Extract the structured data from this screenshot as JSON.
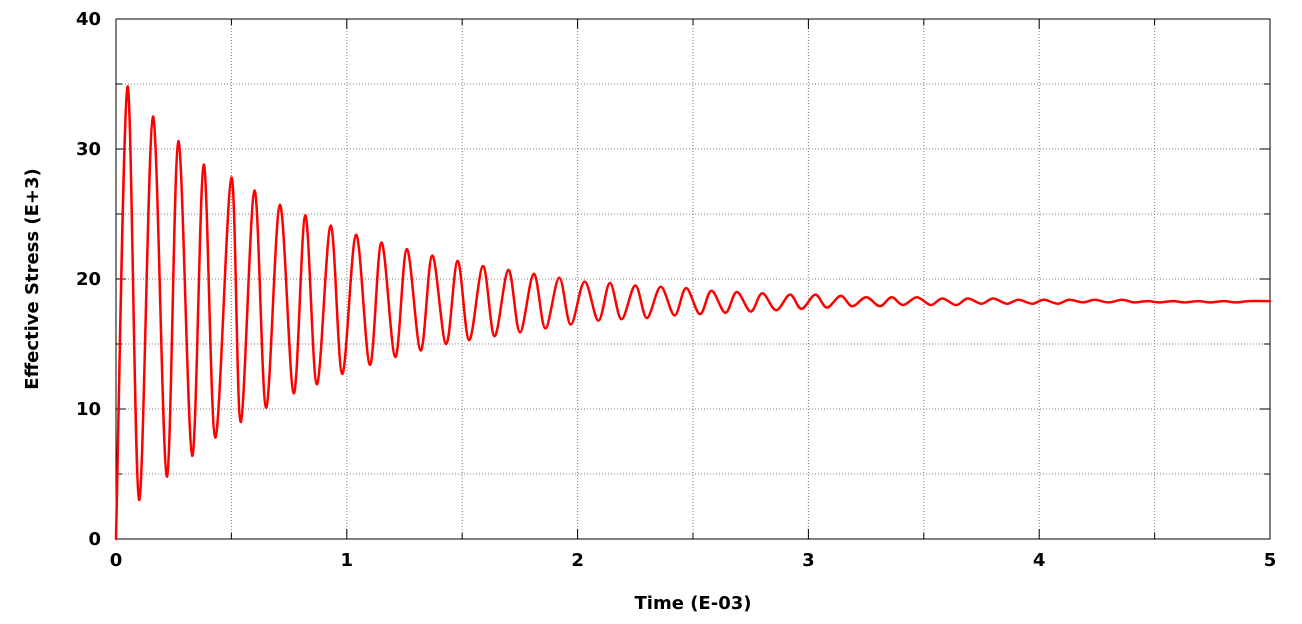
{
  "chart_data": {
    "type": "line",
    "title": "",
    "xlabel": "Time (E-03)",
    "ylabel": "Effective Stress (E+3)",
    "xlim": [
      0,
      5
    ],
    "ylim": [
      0,
      40
    ],
    "x_ticks": [
      0,
      1,
      2,
      3,
      4,
      5
    ],
    "x_tick_labels": [
      "0",
      "1",
      "2",
      "3",
      "4",
      "5"
    ],
    "y_ticks": [
      0,
      10,
      20,
      30,
      40
    ],
    "y_tick_labels": [
      "0",
      "10",
      "20",
      "30",
      "40"
    ],
    "x_minor_ticks": [
      0.5,
      1.5,
      2.5,
      3.5,
      4.5
    ],
    "y_minor_ticks": [
      5,
      15,
      25,
      35
    ],
    "grid": true,
    "legend": "none",
    "series_color": "#ff0000",
    "series": [
      {
        "points": [
          [
            0,
            0
          ],
          [
            0.05,
            34.8
          ],
          [
            0.1,
            3.0
          ],
          [
            0.16,
            32.5
          ],
          [
            0.22,
            4.8
          ],
          [
            0.27,
            30.6
          ],
          [
            0.33,
            6.4
          ],
          [
            0.38,
            28.8
          ],
          [
            0.43,
            7.8
          ],
          [
            0.5,
            27.8
          ],
          [
            0.54,
            9.0
          ],
          [
            0.6,
            26.8
          ],
          [
            0.65,
            10.1
          ],
          [
            0.71,
            25.7
          ],
          [
            0.77,
            11.2
          ],
          [
            0.82,
            24.9
          ],
          [
            0.87,
            11.9
          ],
          [
            0.93,
            24.1
          ],
          [
            0.98,
            12.7
          ],
          [
            1.04,
            23.4
          ],
          [
            1.1,
            13.4
          ],
          [
            1.15,
            22.8
          ],
          [
            1.21,
            14.0
          ],
          [
            1.26,
            22.3
          ],
          [
            1.32,
            14.5
          ],
          [
            1.37,
            21.8
          ],
          [
            1.43,
            15.0
          ],
          [
            1.48,
            21.4
          ],
          [
            1.53,
            15.3
          ],
          [
            1.59,
            21.0
          ],
          [
            1.64,
            15.6
          ],
          [
            1.7,
            20.7
          ],
          [
            1.75,
            15.9
          ],
          [
            1.81,
            20.4
          ],
          [
            1.86,
            16.2
          ],
          [
            1.92,
            20.1
          ],
          [
            1.97,
            16.5
          ],
          [
            2.03,
            19.8
          ],
          [
            2.09,
            16.8
          ],
          [
            2.14,
            19.7
          ],
          [
            2.19,
            16.9
          ],
          [
            2.25,
            19.5
          ],
          [
            2.3,
            17.0
          ],
          [
            2.36,
            19.4
          ],
          [
            2.42,
            17.2
          ],
          [
            2.47,
            19.3
          ],
          [
            2.53,
            17.3
          ],
          [
            2.58,
            19.1
          ],
          [
            2.64,
            17.4
          ],
          [
            2.69,
            19.0
          ],
          [
            2.75,
            17.5
          ],
          [
            2.8,
            18.9
          ],
          [
            2.86,
            17.6
          ],
          [
            2.92,
            18.8
          ],
          [
            2.97,
            17.7
          ],
          [
            3.03,
            18.8
          ],
          [
            3.08,
            17.8
          ],
          [
            3.14,
            18.7
          ],
          [
            3.19,
            17.9
          ],
          [
            3.25,
            18.6
          ],
          [
            3.31,
            17.9
          ],
          [
            3.36,
            18.6
          ],
          [
            3.41,
            18.0
          ],
          [
            3.47,
            18.6
          ],
          [
            3.53,
            18.0
          ],
          [
            3.58,
            18.5
          ],
          [
            3.64,
            18.0
          ],
          [
            3.69,
            18.5
          ],
          [
            3.75,
            18.1
          ],
          [
            3.8,
            18.5
          ],
          [
            3.86,
            18.1
          ],
          [
            3.91,
            18.4
          ],
          [
            3.97,
            18.1
          ],
          [
            4.02,
            18.4
          ],
          [
            4.08,
            18.1
          ],
          [
            4.13,
            18.4
          ],
          [
            4.19,
            18.2
          ],
          [
            4.24,
            18.4
          ],
          [
            4.3,
            18.2
          ],
          [
            4.36,
            18.4
          ],
          [
            4.41,
            18.2
          ],
          [
            4.47,
            18.3
          ],
          [
            4.52,
            18.2
          ],
          [
            4.58,
            18.3
          ],
          [
            4.63,
            18.2
          ],
          [
            4.69,
            18.3
          ],
          [
            4.74,
            18.2
          ],
          [
            4.8,
            18.3
          ],
          [
            4.85,
            18.2
          ],
          [
            4.91,
            18.3
          ],
          [
            5.0,
            18.3
          ]
        ]
      }
    ]
  }
}
